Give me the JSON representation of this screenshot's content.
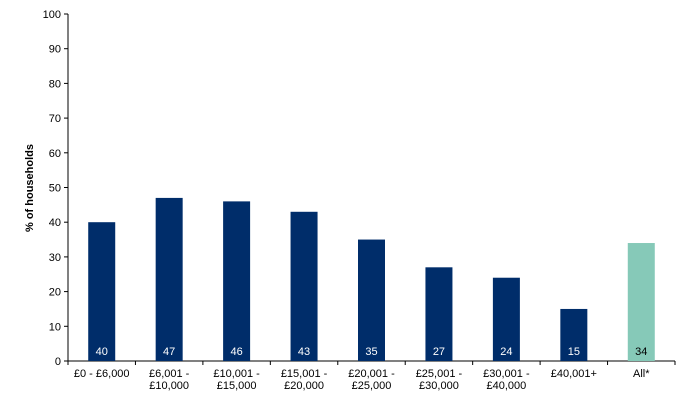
{
  "chart_data": {
    "type": "bar",
    "title": "",
    "xlabel": "",
    "ylabel": "% of households",
    "ylim": [
      0,
      100
    ],
    "yticks": [
      0,
      10,
      20,
      30,
      40,
      50,
      60,
      70,
      80,
      90,
      100
    ],
    "grid": false,
    "legend": "none",
    "categories": [
      [
        "£0 - £6,000"
      ],
      [
        "£6,001 -",
        "£10,000"
      ],
      [
        "£10,001 -",
        "£15,000"
      ],
      [
        "£15,001 -",
        "£20,000"
      ],
      [
        "£20,001 -",
        "£25,000"
      ],
      [
        "£25,001 -",
        "£30,000"
      ],
      [
        "£30,001 -",
        "£40,000"
      ],
      [
        "£40,001+"
      ],
      [
        "All*"
      ]
    ],
    "values": [
      40,
      47,
      46,
      43,
      35,
      27,
      24,
      15,
      34
    ],
    "bar_colors": [
      "#002d6a",
      "#002d6a",
      "#002d6a",
      "#002d6a",
      "#002d6a",
      "#002d6a",
      "#002d6a",
      "#002d6a",
      "#86c9b8"
    ],
    "data_labels": [
      "40",
      "47",
      "46",
      "43",
      "35",
      "27",
      "24",
      "15",
      "34"
    ],
    "data_label_position": "inside-base"
  }
}
